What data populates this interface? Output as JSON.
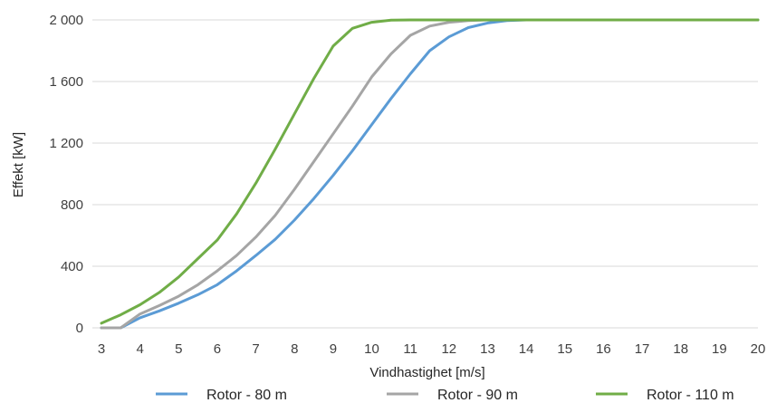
{
  "chart_data": {
    "type": "line",
    "title": "",
    "xlabel": "Vindhastighet [m/s]",
    "ylabel": "Effekt [kW]",
    "xlim": [
      3,
      20
    ],
    "ylim": [
      0,
      2000
    ],
    "x_ticks": [
      3,
      4,
      5,
      6,
      7,
      8,
      9,
      10,
      11,
      12,
      13,
      14,
      15,
      16,
      17,
      18,
      19,
      20
    ],
    "y_ticks": [
      0,
      400,
      800,
      1200,
      1600,
      2000
    ],
    "y_tick_labels": [
      "0",
      "400",
      "800",
      "1 200",
      "1 600",
      "2 000"
    ],
    "grid": "horizontal",
    "legend_position": "bottom",
    "series": [
      {
        "name": "Rotor - 80 m",
        "color": "#5b9bd5",
        "x": [
          3,
          3.5,
          4,
          4.5,
          5,
          5.5,
          6,
          6.5,
          7,
          7.5,
          8,
          8.5,
          9,
          9.5,
          10,
          10.5,
          11,
          11.5,
          12,
          12.5,
          13,
          13.5,
          14,
          15,
          16,
          17,
          18,
          19,
          20
        ],
        "y": [
          0,
          0,
          65,
          110,
          160,
          215,
          280,
          370,
          470,
          575,
          700,
          840,
          990,
          1150,
          1320,
          1490,
          1650,
          1800,
          1890,
          1950,
          1980,
          1995,
          2000,
          2000,
          2000,
          2000,
          2000,
          2000,
          2000
        ]
      },
      {
        "name": "Rotor - 90 m",
        "color": "#a5a5a5",
        "x": [
          3,
          3.5,
          4,
          4.5,
          5,
          5.5,
          6,
          6.5,
          7,
          7.5,
          8,
          8.5,
          9,
          9.5,
          10,
          10.5,
          11,
          11.5,
          12,
          12.5,
          13,
          13.5,
          14,
          15,
          16,
          17,
          18,
          19,
          20
        ],
        "y": [
          0,
          0,
          90,
          145,
          205,
          280,
          370,
          470,
          590,
          730,
          900,
          1080,
          1260,
          1440,
          1630,
          1780,
          1900,
          1960,
          1985,
          1995,
          2000,
          2000,
          2000,
          2000,
          2000,
          2000,
          2000,
          2000,
          2000
        ]
      },
      {
        "name": "Rotor - 110 m",
        "color": "#70ad47",
        "x": [
          3,
          3.5,
          4,
          4.5,
          5,
          5.5,
          6,
          6.5,
          7,
          7.5,
          8,
          8.5,
          9,
          9.5,
          10,
          10.5,
          11,
          11.5,
          12,
          13,
          14,
          15,
          16,
          17,
          18,
          19,
          20
        ],
        "y": [
          30,
          85,
          150,
          230,
          330,
          450,
          570,
          740,
          940,
          1160,
          1390,
          1620,
          1830,
          1945,
          1985,
          1998,
          2000,
          2000,
          2000,
          2000,
          2000,
          2000,
          2000,
          2000,
          2000,
          2000,
          2000
        ]
      }
    ]
  }
}
